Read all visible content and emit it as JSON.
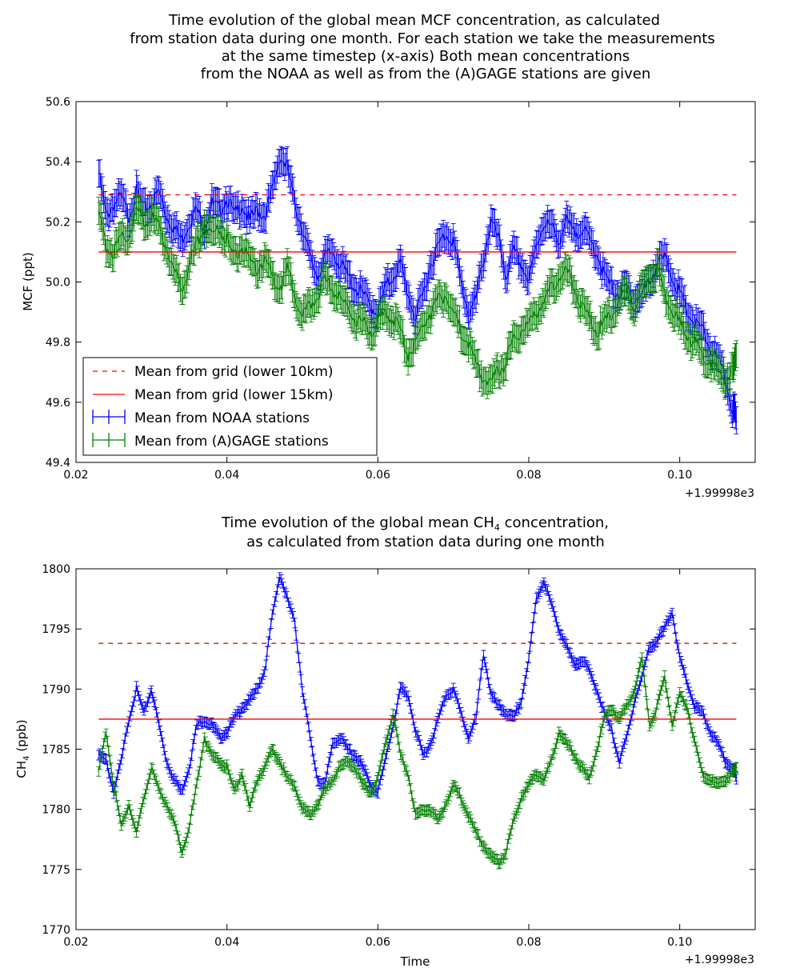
{
  "chart_data": [
    {
      "type": "line",
      "title_lines": [
        "Time evolution of the global mean MCF concentration, as calculated",
        "from station data during one month. For each station we take the measurements",
        "at the same timestep (x-axis) Both mean concentrations",
        "from the NOAA as well as from the (A)GAGE stations are given"
      ],
      "xlabel": "",
      "ylabel": "MCF (ppt)",
      "x_offset_label": "+1.99998e3",
      "xlim": [
        0.02,
        0.11
      ],
      "ylim": [
        49.4,
        50.6
      ],
      "xticks": [
        "0.02",
        "0.04",
        "0.06",
        "0.08",
        "0.10"
      ],
      "yticks": [
        "49.4",
        "49.6",
        "49.8",
        "50.0",
        "50.2",
        "50.4",
        "50.6"
      ],
      "legend_position": "lower-left",
      "hlines": [
        {
          "name": "Mean from grid (lower 10km)",
          "y": 50.29,
          "color": "#ff0000",
          "dashed": true,
          "xrange": [
            0.023,
            0.1075
          ]
        },
        {
          "name": "Mean from grid (lower 15km)",
          "y": 50.1,
          "color": "#ff0000",
          "dashed": false,
          "xrange": [
            0.023,
            0.1075
          ]
        }
      ],
      "series": [
        {
          "name": "Mean from NOAA stations",
          "color": "#0000ff",
          "err": 0.045,
          "x": [
            0.023,
            0.024,
            0.025,
            0.026,
            0.027,
            0.028,
            0.029,
            0.03,
            0.031,
            0.032,
            0.033,
            0.034,
            0.035,
            0.036,
            0.037,
            0.038,
            0.039,
            0.04,
            0.041,
            0.042,
            0.043,
            0.044,
            0.045,
            0.046,
            0.047,
            0.048,
            0.049,
            0.05,
            0.051,
            0.052,
            0.053,
            0.054,
            0.055,
            0.056,
            0.057,
            0.058,
            0.059,
            0.06,
            0.061,
            0.062,
            0.063,
            0.064,
            0.065,
            0.066,
            0.067,
            0.068,
            0.069,
            0.07,
            0.071,
            0.072,
            0.073,
            0.074,
            0.075,
            0.076,
            0.077,
            0.078,
            0.079,
            0.08,
            0.081,
            0.082,
            0.083,
            0.084,
            0.085,
            0.086,
            0.087,
            0.088,
            0.089,
            0.09,
            0.091,
            0.092,
            0.093,
            0.094,
            0.095,
            0.096,
            0.097,
            0.098,
            0.099,
            0.1,
            0.101,
            0.102,
            0.103,
            0.104,
            0.105,
            0.106,
            0.107,
            0.1075
          ],
          "y": [
            50.36,
            50.22,
            50.26,
            50.28,
            50.22,
            50.3,
            50.24,
            50.26,
            50.3,
            50.22,
            50.18,
            50.14,
            50.2,
            50.24,
            50.18,
            50.26,
            50.24,
            50.28,
            50.22,
            50.26,
            50.2,
            50.24,
            50.22,
            50.3,
            50.42,
            50.38,
            50.26,
            50.18,
            50.08,
            50.02,
            50.08,
            50.1,
            50.06,
            50.02,
            49.98,
            49.96,
            49.92,
            49.9,
            49.98,
            50.02,
            50.06,
            49.96,
            49.88,
            49.96,
            50.06,
            50.12,
            50.16,
            50.14,
            50.0,
            49.9,
            49.94,
            50.08,
            50.2,
            50.14,
            50.02,
            50.1,
            50.06,
            50.0,
            50.12,
            50.2,
            50.18,
            50.14,
            50.2,
            50.16,
            50.18,
            50.14,
            50.1,
            50.02,
            49.98,
            49.96,
            49.98,
            49.94,
            49.96,
            50.0,
            50.06,
            50.08,
            50.02,
            49.96,
            49.9,
            49.86,
            49.84,
            49.78,
            49.74,
            49.68,
            49.58,
            49.54
          ]
        },
        {
          "name": "Mean from (A)GAGE stations",
          "color": "#008000",
          "err": 0.045,
          "x": [
            0.023,
            0.024,
            0.025,
            0.026,
            0.027,
            0.028,
            0.029,
            0.03,
            0.031,
            0.032,
            0.033,
            0.034,
            0.035,
            0.036,
            0.037,
            0.038,
            0.039,
            0.04,
            0.041,
            0.042,
            0.043,
            0.044,
            0.045,
            0.046,
            0.047,
            0.048,
            0.049,
            0.05,
            0.051,
            0.052,
            0.053,
            0.054,
            0.055,
            0.056,
            0.057,
            0.058,
            0.059,
            0.06,
            0.061,
            0.062,
            0.063,
            0.064,
            0.065,
            0.066,
            0.067,
            0.068,
            0.069,
            0.07,
            0.071,
            0.072,
            0.073,
            0.074,
            0.075,
            0.076,
            0.077,
            0.078,
            0.079,
            0.08,
            0.081,
            0.082,
            0.083,
            0.084,
            0.085,
            0.086,
            0.087,
            0.088,
            0.089,
            0.09,
            0.091,
            0.092,
            0.093,
            0.094,
            0.095,
            0.096,
            0.097,
            0.098,
            0.099,
            0.1,
            0.101,
            0.102,
            0.103,
            0.104,
            0.105,
            0.106,
            0.107,
            0.1075
          ],
          "y": [
            50.22,
            50.12,
            50.1,
            50.14,
            50.16,
            50.24,
            50.2,
            50.22,
            50.18,
            50.12,
            50.04,
            49.98,
            50.06,
            50.12,
            50.2,
            50.16,
            50.18,
            50.14,
            50.08,
            50.12,
            50.06,
            50.04,
            50.08,
            50.02,
            49.98,
            50.04,
            49.96,
            49.88,
            49.92,
            49.96,
            50.0,
            49.98,
            49.94,
            49.92,
            49.88,
            49.86,
            49.84,
            49.86,
            49.9,
            49.88,
            49.84,
            49.76,
            49.8,
            49.86,
            49.9,
            49.94,
            49.96,
            49.9,
            49.84,
            49.8,
            49.72,
            49.68,
            49.66,
            49.7,
            49.74,
            49.8,
            49.84,
            49.86,
            49.9,
            49.94,
            49.98,
            50.02,
            50.04,
            49.98,
            49.92,
            49.88,
            49.84,
            49.86,
            49.9,
            49.94,
            49.96,
            49.92,
            49.98,
            50.02,
            50.04,
            49.96,
            49.9,
            49.86,
            49.82,
            49.8,
            49.76,
            49.74,
            49.7,
            49.68,
            49.7,
            49.76
          ]
        }
      ]
    },
    {
      "type": "line",
      "title_lines": [
        "Time evolution of the global mean CH",
        "as calculated from station data during one month"
      ],
      "title_sub": "4",
      "title_tail": " concentration,",
      "xlabel": "Time",
      "ylabel": "CH",
      "ylabel_sub": "4",
      "ylabel_tail": " (ppb)",
      "x_offset_label": "+1.99998e3",
      "xlim": [
        0.02,
        0.11
      ],
      "ylim": [
        1770,
        1800
      ],
      "xticks": [
        "0.02",
        "0.04",
        "0.06",
        "0.08",
        "0.10"
      ],
      "yticks": [
        "1770",
        "1775",
        "1780",
        "1785",
        "1790",
        "1795",
        "1800"
      ],
      "hlines": [
        {
          "y": 1793.8,
          "color": "#ff0000",
          "dashed": true,
          "xrange": [
            0.023,
            0.1075
          ]
        },
        {
          "y": 1787.5,
          "color": "#ff0000",
          "dashed": false,
          "xrange": [
            0.023,
            0.1075
          ]
        }
      ],
      "series": [
        {
          "name": "Mean from NOAA stations",
          "color": "#0000ff",
          "err": 0.4,
          "x": [
            0.023,
            0.024,
            0.025,
            0.026,
            0.027,
            0.028,
            0.029,
            0.03,
            0.031,
            0.032,
            0.033,
            0.034,
            0.035,
            0.036,
            0.037,
            0.038,
            0.039,
            0.04,
            0.041,
            0.042,
            0.043,
            0.044,
            0.045,
            0.046,
            0.047,
            0.048,
            0.049,
            0.05,
            0.051,
            0.052,
            0.053,
            0.054,
            0.055,
            0.056,
            0.057,
            0.058,
            0.059,
            0.06,
            0.061,
            0.062,
            0.063,
            0.064,
            0.065,
            0.066,
            0.067,
            0.068,
            0.069,
            0.07,
            0.071,
            0.072,
            0.073,
            0.074,
            0.075,
            0.076,
            0.077,
            0.078,
            0.079,
            0.08,
            0.081,
            0.082,
            0.083,
            0.084,
            0.085,
            0.086,
            0.087,
            0.088,
            0.089,
            0.09,
            0.091,
            0.092,
            0.093,
            0.094,
            0.095,
            0.096,
            0.097,
            0.098,
            0.099,
            0.1,
            0.101,
            0.102,
            0.103,
            0.104,
            0.105,
            0.106,
            0.107,
            0.1075
          ],
          "y": [
            1784.5,
            1784.0,
            1781.5,
            1784.0,
            1787.5,
            1790.0,
            1788.0,
            1790.0,
            1787.0,
            1784.0,
            1782.5,
            1781.5,
            1783.5,
            1787.0,
            1787.5,
            1787.0,
            1786.0,
            1786.5,
            1787.5,
            1788.5,
            1789.0,
            1790.0,
            1791.5,
            1796.0,
            1799.5,
            1797.5,
            1795.5,
            1790.0,
            1786.0,
            1782.5,
            1782.0,
            1785.5,
            1786.0,
            1785.0,
            1784.5,
            1783.5,
            1782.0,
            1781.5,
            1784.0,
            1787.0,
            1790.0,
            1789.5,
            1786.5,
            1784.5,
            1785.5,
            1787.5,
            1789.5,
            1790.0,
            1788.0,
            1786.0,
            1787.5,
            1793.0,
            1789.5,
            1788.5,
            1788.0,
            1787.5,
            1789.0,
            1792.5,
            1797.5,
            1799.0,
            1797.0,
            1795.0,
            1793.5,
            1792.0,
            1792.5,
            1791.5,
            1790.0,
            1788.0,
            1786.5,
            1784.0,
            1786.0,
            1789.0,
            1791.0,
            1793.5,
            1794.0,
            1795.0,
            1796.5,
            1792.5,
            1790.5,
            1788.5,
            1788.0,
            1786.5,
            1785.5,
            1784.0,
            1783.5,
            1782.5
          ]
        },
        {
          "name": "Mean from (A)GAGE stations",
          "color": "#008000",
          "err": 0.4,
          "x": [
            0.023,
            0.024,
            0.025,
            0.026,
            0.027,
            0.028,
            0.029,
            0.03,
            0.031,
            0.032,
            0.033,
            0.034,
            0.035,
            0.036,
            0.037,
            0.038,
            0.039,
            0.04,
            0.041,
            0.042,
            0.043,
            0.044,
            0.045,
            0.046,
            0.047,
            0.048,
            0.049,
            0.05,
            0.051,
            0.052,
            0.053,
            0.054,
            0.055,
            0.056,
            0.057,
            0.058,
            0.059,
            0.06,
            0.061,
            0.062,
            0.063,
            0.064,
            0.065,
            0.066,
            0.067,
            0.068,
            0.069,
            0.07,
            0.071,
            0.072,
            0.073,
            0.074,
            0.075,
            0.076,
            0.077,
            0.078,
            0.079,
            0.08,
            0.081,
            0.082,
            0.083,
            0.084,
            0.085,
            0.086,
            0.087,
            0.088,
            0.089,
            0.09,
            0.091,
            0.092,
            0.093,
            0.094,
            0.095,
            0.096,
            0.097,
            0.098,
            0.099,
            0.1,
            0.101,
            0.102,
            0.103,
            0.104,
            0.105,
            0.106,
            0.107,
            0.1075
          ],
          "y": [
            1783.0,
            1786.5,
            1782.0,
            1778.5,
            1780.5,
            1778.0,
            1781.0,
            1783.5,
            1781.5,
            1780.5,
            1779.0,
            1776.5,
            1778.5,
            1782.0,
            1786.0,
            1784.5,
            1784.0,
            1783.5,
            1781.5,
            1783.0,
            1780.0,
            1782.5,
            1783.5,
            1785.0,
            1784.0,
            1782.5,
            1782.0,
            1780.0,
            1779.5,
            1780.5,
            1781.5,
            1782.5,
            1783.5,
            1784.0,
            1783.5,
            1782.0,
            1781.5,
            1782.5,
            1785.5,
            1788.0,
            1784.5,
            1783.0,
            1779.5,
            1780.0,
            1780.0,
            1779.0,
            1780.5,
            1782.0,
            1781.0,
            1779.5,
            1778.0,
            1777.0,
            1776.0,
            1775.5,
            1776.5,
            1779.0,
            1781.0,
            1782.0,
            1783.0,
            1782.5,
            1784.0,
            1786.5,
            1785.5,
            1784.5,
            1783.5,
            1782.5,
            1785.0,
            1787.5,
            1788.5,
            1787.5,
            1788.5,
            1790.0,
            1792.5,
            1787.0,
            1788.5,
            1791.0,
            1787.0,
            1789.5,
            1788.5,
            1785.5,
            1783.0,
            1782.5,
            1782.0,
            1782.5,
            1783.0,
            1783.5
          ]
        }
      ]
    }
  ]
}
